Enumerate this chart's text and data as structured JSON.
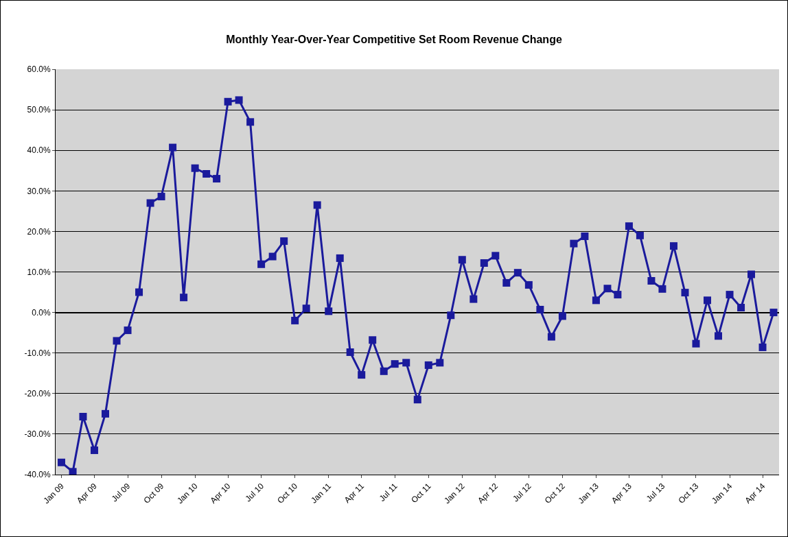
{
  "chart_data": {
    "type": "line",
    "title": "Monthly Year-Over-Year Competitive Set Room Revenue Change",
    "x": [
      "2009-01",
      "2009-02",
      "2009-03",
      "2009-04",
      "2009-05",
      "2009-06",
      "2009-07",
      "2009-08",
      "2009-09",
      "2009-10",
      "2009-11",
      "2009-12",
      "2010-01",
      "2010-02",
      "2010-03",
      "2010-04",
      "2010-05",
      "2010-06",
      "2010-07",
      "2010-08",
      "2010-09",
      "2010-10",
      "2010-11",
      "2010-12",
      "2011-01",
      "2011-02",
      "2011-03",
      "2011-04",
      "2011-05",
      "2011-06",
      "2011-07",
      "2011-08",
      "2011-09",
      "2011-10",
      "2011-11",
      "2011-12",
      "2012-01",
      "2012-02",
      "2012-03",
      "2012-04",
      "2012-05",
      "2012-06",
      "2012-07",
      "2012-08",
      "2012-09",
      "2012-10",
      "2012-11",
      "2012-12",
      "2013-01",
      "2013-02",
      "2013-03",
      "2013-04",
      "2013-05",
      "2013-06",
      "2013-07",
      "2013-08",
      "2013-09",
      "2013-10",
      "2013-11",
      "2013-12",
      "2014-01",
      "2014-02",
      "2014-03",
      "2014-04",
      "2014-05"
    ],
    "series": [
      {
        "color": "#1a1a9c",
        "values": [
          -37,
          -39.3,
          -25.7,
          -34,
          -25,
          -7,
          -4.4,
          5,
          27,
          28.6,
          40.7,
          3.7,
          35.6,
          34.2,
          33,
          52,
          52.4,
          47,
          11.9,
          13.8,
          17.6,
          -2,
          1,
          26.5,
          0.3,
          13.4,
          -9.8,
          -15.4,
          -6.8,
          -14.5,
          -12.7,
          -12.4,
          -21.5,
          -13,
          -12.4,
          -0.7,
          13,
          3.3,
          12.2,
          14,
          7.3,
          9.8,
          6.8,
          0.7,
          -6,
          -0.9,
          17,
          18.8,
          3,
          5.9,
          4.4,
          21.3,
          19,
          7.8,
          5.8,
          16.4,
          4.9,
          -7.7,
          3,
          -5.8,
          4.4,
          1.2,
          9.4,
          -8.6,
          0
        ]
      }
    ],
    "xlim": [
      "2008-12-16",
      "2014-05-16"
    ],
    "xticks": [
      {
        "value": "2009-01",
        "label": "Jan 09"
      },
      {
        "value": "2009-04",
        "label": "Apr 09"
      },
      {
        "value": "2009-07",
        "label": "Jul 09"
      },
      {
        "value": "2009-10",
        "label": "Oct 09"
      },
      {
        "value": "2010-01",
        "label": "Jan 10"
      },
      {
        "value": "2010-04",
        "label": "Apr 10"
      },
      {
        "value": "2010-07",
        "label": "Jul 10"
      },
      {
        "value": "2010-10",
        "label": "Oct 10"
      },
      {
        "value": "2011-01",
        "label": "Jan 11"
      },
      {
        "value": "2011-04",
        "label": "Apr 11"
      },
      {
        "value": "2011-07",
        "label": "Jul 11"
      },
      {
        "value": "2011-10",
        "label": "Oct 11"
      },
      {
        "value": "2012-01",
        "label": "Jan 12"
      },
      {
        "value": "2012-04",
        "label": "Apr 12"
      },
      {
        "value": "2012-07",
        "label": "Jul 12"
      },
      {
        "value": "2012-10",
        "label": "Oct 12"
      },
      {
        "value": "2013-01",
        "label": "Jan 13"
      },
      {
        "value": "2013-04",
        "label": "Apr 13"
      },
      {
        "value": "2013-07",
        "label": "Jul 13"
      },
      {
        "value": "2013-10",
        "label": "Oct 13"
      },
      {
        "value": "2014-01",
        "label": "Jan 14"
      },
      {
        "value": "2014-04",
        "label": "Apr 14"
      }
    ],
    "ylim": [
      -40,
      60
    ],
    "yticks": [
      {
        "value": -40,
        "label": "-40.0%"
      },
      {
        "value": -30,
        "label": "-30.0%"
      },
      {
        "value": -20,
        "label": "-20.0%"
      },
      {
        "value": -10,
        "label": "-10.0%"
      },
      {
        "value": 0,
        "label": "0.0%"
      },
      {
        "value": 10,
        "label": "10.0%"
      },
      {
        "value": 20,
        "label": "20.0%"
      },
      {
        "value": 30,
        "label": "30.0%"
      },
      {
        "value": 40,
        "label": "40.0%"
      },
      {
        "value": 50,
        "label": "50.0%"
      },
      {
        "value": 60,
        "label": "60.0%"
      }
    ],
    "grid": "y",
    "marker": "square",
    "line_style": "solid"
  }
}
